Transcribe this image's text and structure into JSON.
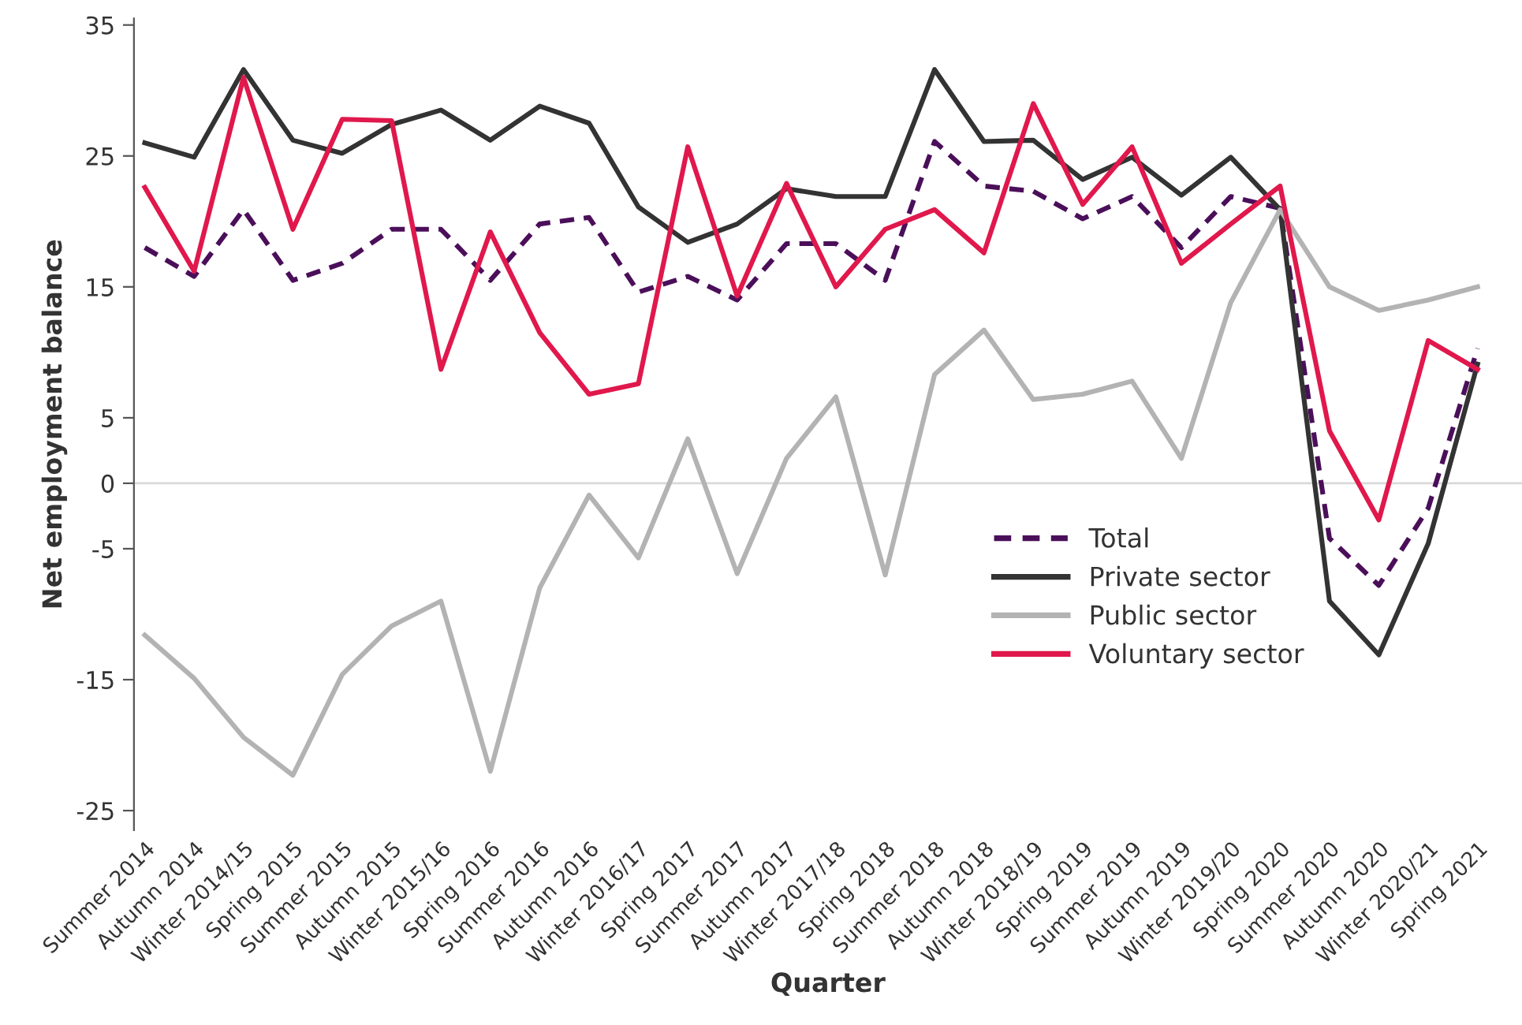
{
  "chart_data": {
    "type": "line",
    "xlabel": "Quarter",
    "ylabel": "Net employment balance",
    "categories": [
      "Summer 2014",
      "Autumn 2014",
      "Winter 2014/15",
      "Spring 2015",
      "Summer 2015",
      "Autumn 2015",
      "Winter 2015/16",
      "Spring 2016",
      "Summer 2016",
      "Autumn 2016",
      "Winter 2016/17",
      "Spring 2017",
      "Summer 2017",
      "Autumn 2017",
      "Winter 2017/18",
      "Spring 2018",
      "Summer 2018",
      "Autumn 2018",
      "Winter 2018/19",
      "Spring 2019",
      "Summer 2019",
      "Autumn 2019",
      "Winter 2019/20",
      "Spring 2020",
      "Summer 2020",
      "Autumn 2020",
      "Winter 2020/21",
      "Spring 2021"
    ],
    "series": [
      {
        "name": "Total",
        "color": "#4b0f5a",
        "line_style": "dashed",
        "values": [
          18.0,
          15.8,
          20.9,
          15.5,
          16.8,
          19.4,
          19.4,
          15.5,
          19.8,
          20.3,
          14.6,
          15.8,
          14.0,
          18.3,
          18.3,
          15.5,
          26.1,
          22.7,
          22.3,
          20.2,
          21.9,
          18.0,
          21.9,
          21.0,
          -4.2,
          -7.8,
          -1.9,
          10.3
        ]
      },
      {
        "name": "Private sector",
        "color": "#333333",
        "line_style": "solid",
        "values": [
          26.0,
          24.9,
          31.6,
          26.2,
          25.2,
          27.4,
          28.5,
          26.2,
          28.8,
          27.5,
          21.1,
          18.4,
          19.8,
          22.5,
          21.9,
          21.9,
          31.6,
          26.1,
          26.2,
          23.2,
          24.9,
          22.0,
          24.9,
          20.9,
          -9.0,
          -13.1,
          -4.6,
          9.1
        ]
      },
      {
        "name": "Public sector",
        "color": "#b3b3b3",
        "line_style": "solid",
        "values": [
          -11.6,
          -14.9,
          -19.4,
          -22.3,
          -14.6,
          -10.9,
          -9.0,
          -22.0,
          -8.0,
          -0.9,
          -5.7,
          3.4,
          -6.9,
          1.9,
          6.6,
          -7.0,
          8.3,
          11.7,
          6.4,
          6.8,
          7.8,
          1.9,
          13.8,
          20.9,
          15.0,
          13.2,
          14.0,
          15.0
        ]
      },
      {
        "name": "Voluntary sector",
        "color": "#e0184c",
        "line_style": "solid",
        "values": [
          22.6,
          16.2,
          31.0,
          19.4,
          27.8,
          27.7,
          8.7,
          19.2,
          11.5,
          6.8,
          7.6,
          25.7,
          14.3,
          22.9,
          15.0,
          19.4,
          20.9,
          17.6,
          29.0,
          21.3,
          25.7,
          16.8,
          19.8,
          22.7,
          4.0,
          -2.8,
          10.9,
          8.7
        ]
      }
    ],
    "ylim": [
      -26.5,
      35.5
    ],
    "yticks": [
      -25,
      -15,
      -5,
      0,
      5,
      15,
      25,
      35
    ],
    "ref_lines": [
      {
        "axis": "y",
        "value": 0,
        "color": "#d9d9d9"
      }
    ],
    "grid": false,
    "legend": "bottom right",
    "marker": "none"
  }
}
